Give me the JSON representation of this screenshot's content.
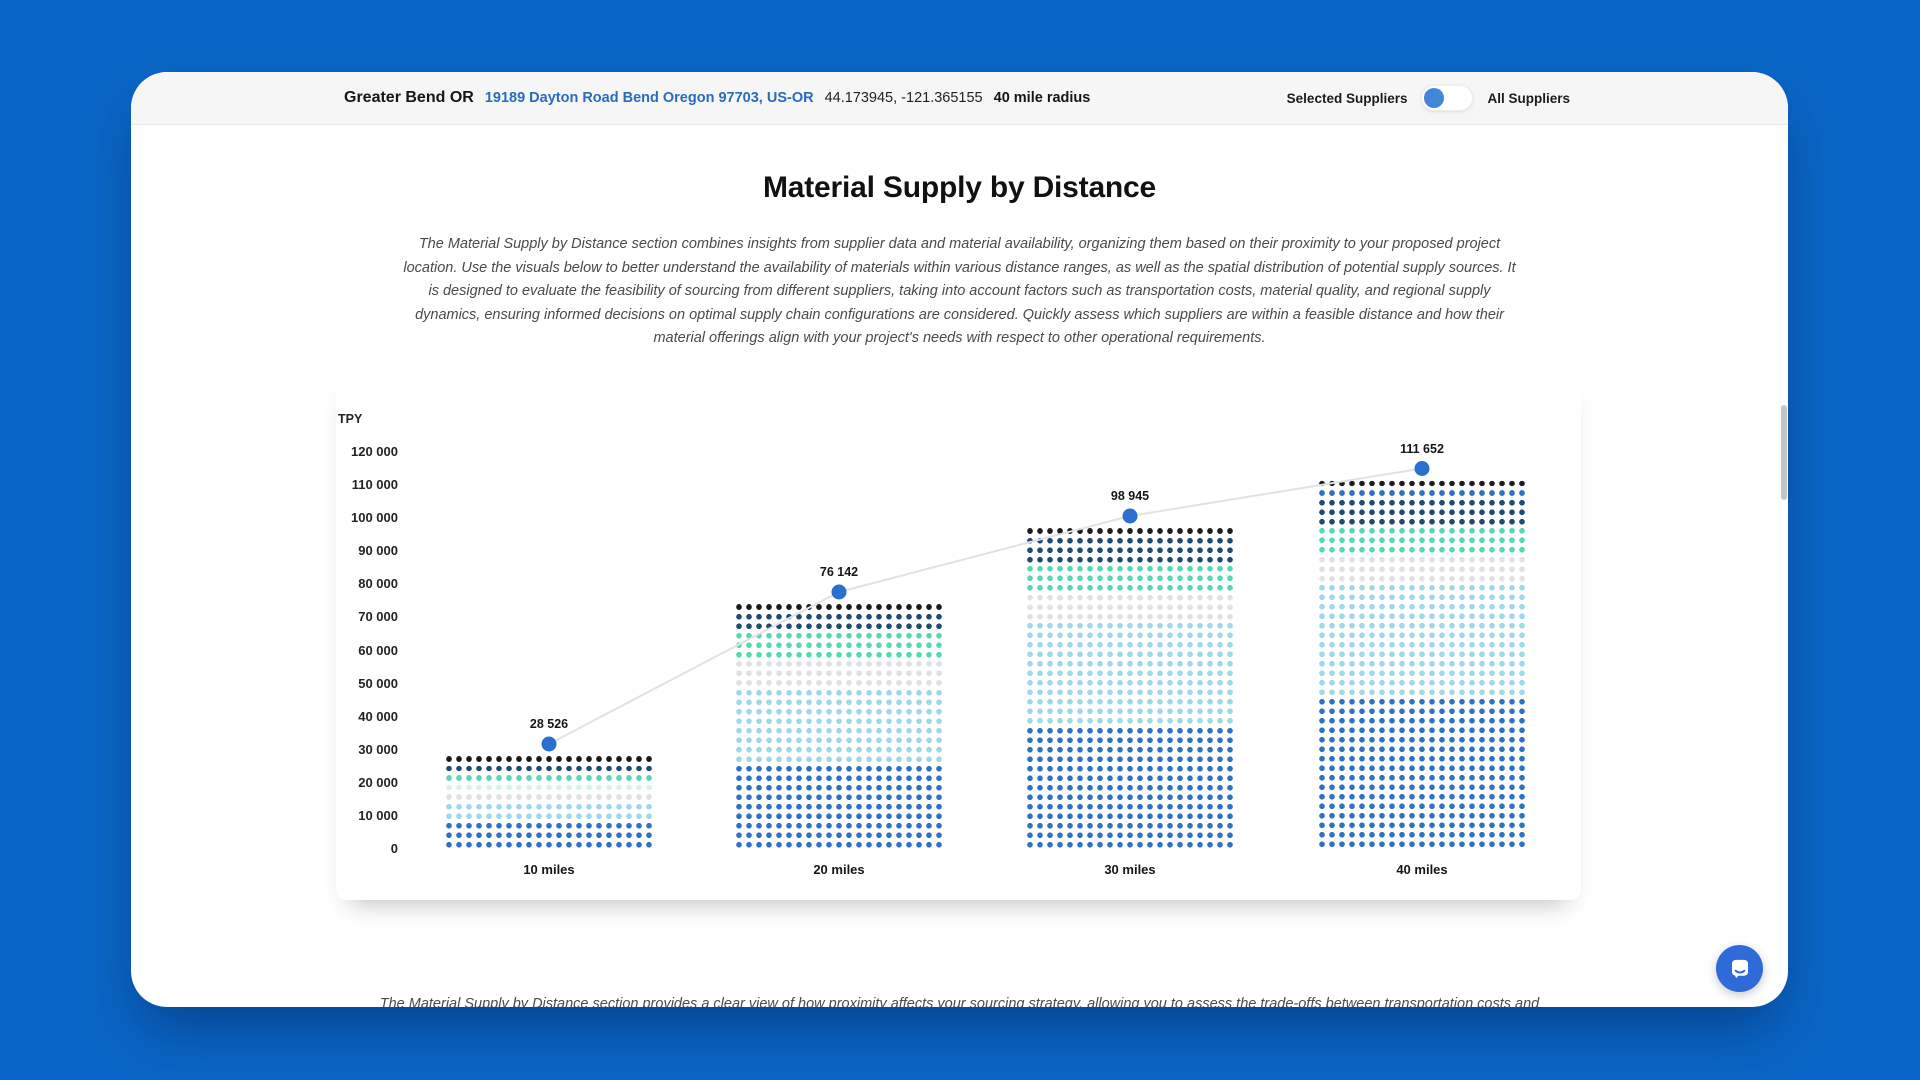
{
  "background_color": "#0a66c6",
  "header": {
    "location_name": "Greater Bend OR",
    "address_link": "19189 Dayton Road Bend Oregon 97703, US-OR",
    "coordinates": "44.173945, -121.365155",
    "radius": "40 mile radius",
    "toggle": {
      "left_label": "Selected Suppliers",
      "right_label": "All Suppliers",
      "state": "left",
      "knob_color": "#4286d9"
    }
  },
  "main": {
    "title": "Material Supply by Distance",
    "description": "The Material Supply by Distance section combines insights from supplier data and material availability, organizing them based on their proximity to your proposed project location. Use the visuals below to better understand the availability of materials within various distance ranges, as well as the spatial distribution of potential supply sources. It is designed to evaluate the feasibility of sourcing from different suppliers, taking into account factors such as transportation costs, material quality, and regional supply dynamics, ensuring informed decisions on optimal supply chain configurations are considered. Quickly assess which suppliers are within a feasible distance and how their material offerings align with your project's needs with respect to other operational requirements.",
    "footer_text": "The Material Supply by Distance section provides a clear view of how proximity affects your sourcing strategy, allowing you to assess the trade-offs between transportation costs and"
  },
  "chart_data": {
    "type": "bar",
    "variant": "dot-matrix",
    "title": "Material Supply by Distance",
    "unit_label": "TPY",
    "xlabel": "",
    "ylabel": "TPY",
    "categories": [
      "10 miles",
      "20 miles",
      "30 miles",
      "40 miles"
    ],
    "values": [
      28526,
      76142,
      98945,
      111652
    ],
    "value_labels": [
      "28 526",
      "76 142",
      "98 945",
      "111 652"
    ],
    "ylim": [
      0,
      120000
    ],
    "ytick_step": 10000,
    "ytick_labels": [
      "0",
      "10 000",
      "20 000",
      "30 000",
      "40 000",
      "50 000",
      "60 000",
      "70 000",
      "80 000",
      "90 000",
      "100 000",
      "110 000",
      "120 000"
    ],
    "grid": false,
    "legend": false,
    "line_overlay": {
      "color": "#e2e2e2",
      "marker_color": "#2a70cf"
    },
    "dot_colors": {
      "black": "#1c1c1c",
      "navy": "#1e4a73",
      "mint": "#55d9b0",
      "palemint": "#d4f3e9",
      "gray": "#e1e1e1",
      "sky": "#9ed7e9",
      "blue": "#2f71c4"
    },
    "bars": [
      {
        "category": "10 miles",
        "bands": [
          [
            "black",
            1
          ],
          [
            "navy",
            1
          ],
          [
            "mint",
            1
          ],
          [
            "palemint",
            1
          ],
          [
            "gray",
            1
          ],
          [
            "sky",
            2
          ],
          [
            "blue",
            3
          ]
        ]
      },
      {
        "category": "20 miles",
        "bands": [
          [
            "black",
            1
          ],
          [
            "navy",
            2
          ],
          [
            "mint",
            3
          ],
          [
            "gray",
            3
          ],
          [
            "sky",
            8
          ],
          [
            "blue",
            9
          ]
        ]
      },
      {
        "category": "30 miles",
        "bands": [
          [
            "black",
            1
          ],
          [
            "navy",
            3
          ],
          [
            "mint",
            3
          ],
          [
            "gray",
            3
          ],
          [
            "sky",
            11
          ],
          [
            "blue",
            13
          ]
        ]
      },
      {
        "category": "40 miles",
        "bands": [
          [
            "black",
            1
          ],
          [
            "blue",
            1
          ],
          [
            "navy",
            3
          ],
          [
            "mint",
            3
          ],
          [
            "gray",
            3
          ],
          [
            "sky",
            12
          ],
          [
            "blue",
            16
          ]
        ]
      }
    ]
  },
  "chat_button": {
    "color": "#2e6bd9",
    "icon": "chat-bubble"
  }
}
